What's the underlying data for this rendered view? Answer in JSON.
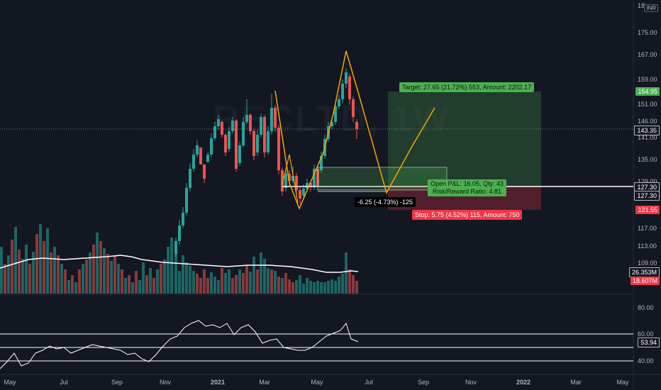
{
  "watermark": {
    "symbol": "RECLTD, 1W",
    "name": "REC LTD"
  },
  "currency": "INR",
  "price_axis": {
    "labels": [
      "175.00",
      "167.00",
      "159.00",
      "151.00",
      "146.00",
      "141.00",
      "135.00",
      "129.00",
      "117.00",
      "113.00",
      "109.00"
    ],
    "top_partial": "18"
  },
  "price_badges": {
    "target": "154.95",
    "current": "143.35",
    "entry_upper": "127.30",
    "entry_lower": "127.30",
    "stop": "121.55",
    "vol_ma": "26.353M",
    "volume": "18.607M"
  },
  "rsi_axis": {
    "labels": [
      "80.00",
      "60.00",
      "40.00"
    ],
    "value": "53.94"
  },
  "time_axis": [
    "May",
    "Jul",
    "Sep",
    "Nov",
    "2021",
    "Mar",
    "May",
    "Jul",
    "Sep",
    "Nov",
    "2022",
    "Mar",
    "May"
  ],
  "position": {
    "target_label": "Target: 27.65 (21.72%) 553, Amount: 2202.17",
    "open_pnl_label": "Open P&L: 16.05, Qty: 43",
    "rr_label": "Risk/Reward Ratio: 4.81",
    "stop_label": "Stop: 5.75 (4.52%) 115, Amount: 750"
  },
  "measure_label": "-6.25 (-4.73%) -125",
  "colors": {
    "up": "#26a69a",
    "down": "#ef5350",
    "pattern": "#f7a600",
    "background": "#131722"
  }
}
